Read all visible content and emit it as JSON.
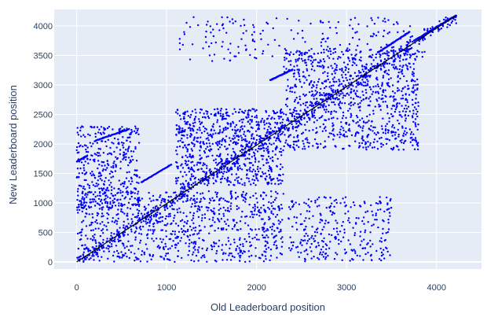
{
  "colors": {
    "plot_bg": "#e5ecf6",
    "grid": "#ffffff",
    "points": "#0000ff",
    "diagonal": "#000000",
    "text": "#2a3f5f"
  },
  "chart_data": {
    "type": "scatter",
    "title": "",
    "xlabel": "Old Leaderboard position",
    "ylabel": "New Leaderboard position",
    "xlim": [
      -250,
      4500
    ],
    "ylim": [
      -120,
      4280
    ],
    "x_ticks": [
      0,
      1000,
      2000,
      3000,
      4000
    ],
    "y_ticks": [
      0,
      500,
      1000,
      1500,
      2000,
      2500,
      3000,
      3500,
      4000
    ],
    "grid": true,
    "legend": "none",
    "series": [
      {
        "marker": "dot",
        "n_points_approx": 4200,
        "x_range": [
          0,
          4220
        ],
        "y_range": [
          0,
          4180
        ],
        "note_visible_structure": "dense cloud of ~4200 points spanning the full range, concentrated along the diagonal with clusters at y 0-1200 and y 2000-3500"
      },
      {
        "type": "line",
        "x": [
          0,
          4220
        ],
        "y": [
          0,
          4180
        ]
      }
    ]
  }
}
